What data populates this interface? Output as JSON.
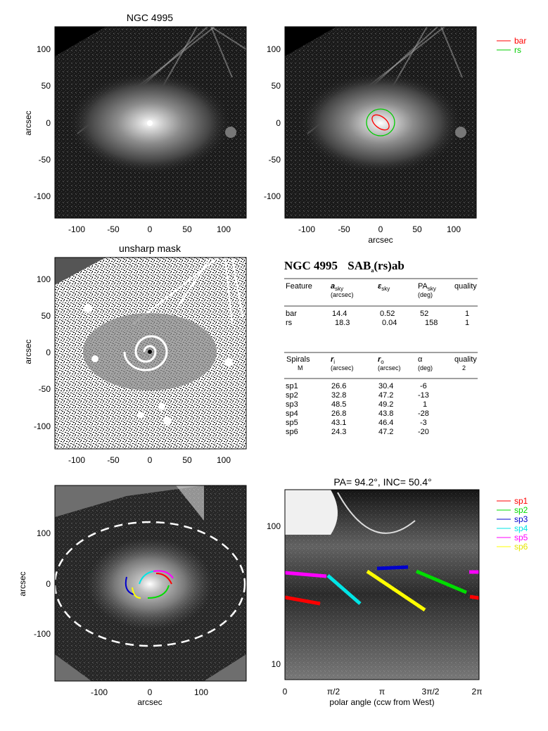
{
  "panel1": {
    "title": "NGC 4995",
    "ylabel": "arcsec",
    "xticks": [
      "-100",
      "-50",
      "0",
      "50",
      "100"
    ],
    "yticks": [
      "100",
      "50",
      "0",
      "-50",
      "-100"
    ]
  },
  "panel2": {
    "xlabel": "arcsec",
    "xticks": [
      "-100",
      "-50",
      "0",
      "50",
      "100"
    ],
    "yticks": [
      "100",
      "50",
      "0",
      "-50",
      "-100"
    ],
    "legend": [
      {
        "label": "bar",
        "color": "#ff0000"
      },
      {
        "label": "rs",
        "color": "#00cc00"
      }
    ]
  },
  "panel3": {
    "title": "unsharp mask",
    "ylabel": "arcsec",
    "xticks": [
      "-100",
      "-50",
      "0",
      "50",
      "100"
    ],
    "yticks": [
      "100",
      "50",
      "0",
      "-50",
      "-100"
    ]
  },
  "table": {
    "heading_name": "NGC 4995",
    "heading_class": "SAB",
    "heading_class_sub": "a",
    "heading_class_tail": "(rs)ab",
    "h1": {
      "feature": "Feature",
      "a": "a",
      "a_sub": "sky",
      "a_unit": "(arcsec)",
      "e": "ε",
      "e_sub": "sky",
      "pa": "PA",
      "pa_sub": "sky",
      "pa_unit": "(deg)",
      "q": "quality"
    },
    "rows1": [
      {
        "f": "bar",
        "a": "14.4",
        "e": "0.52",
        "pa": "52",
        "q": "1"
      },
      {
        "f": "rs",
        "a": "18.3",
        "e": "0.04",
        "pa": "158",
        "q": "1"
      }
    ],
    "h2": {
      "feature": "Spirals",
      "feature2": "M",
      "ri": "r",
      "ri_sub": "i",
      "ri_unit": "(arcsec)",
      "ro": "r",
      "ro_sub": "o",
      "ro_unit": "(arcsec)",
      "alpha": "α",
      "alpha_unit": "(deg)",
      "q": "quality",
      "q2": "2"
    },
    "rows2": [
      {
        "f": "sp1",
        "ri": "26.6",
        "ro": "30.4",
        "al": "-6"
      },
      {
        "f": "sp2",
        "ri": "32.8",
        "ro": "47.2",
        "al": "-13"
      },
      {
        "f": "sp3",
        "ri": "48.5",
        "ro": "49.2",
        "al": "1"
      },
      {
        "f": "sp4",
        "ri": "26.8",
        "ro": "43.8",
        "al": "-28"
      },
      {
        "f": "sp5",
        "ri": "43.1",
        "ro": "46.4",
        "al": "-3"
      },
      {
        "f": "sp6",
        "ri": "24.3",
        "ro": "47.2",
        "al": "-20"
      }
    ]
  },
  "panel5": {
    "ylabel": "arcsec",
    "xlabel": "arcsec",
    "xticks": [
      "-100",
      "0",
      "100"
    ],
    "yticks": [
      "100",
      "0",
      "-100"
    ]
  },
  "panel6": {
    "title": "PA= 94.2°, INC= 50.4°",
    "xlabel": "polar angle (ccw from West)",
    "xticks": [
      "0",
      "π/2",
      "π",
      "3π/2",
      "2π"
    ],
    "yticks": [
      "100",
      "10"
    ],
    "legend": [
      {
        "label": "sp1",
        "color": "#ff0000"
      },
      {
        "label": "sp2",
        "color": "#00dd00"
      },
      {
        "label": "sp3",
        "color": "#0000cc"
      },
      {
        "label": "sp4",
        "color": "#00e5e5"
      },
      {
        "label": "sp5",
        "color": "#ff00ff"
      },
      {
        "label": "sp6",
        "color": "#ffff00"
      }
    ]
  }
}
